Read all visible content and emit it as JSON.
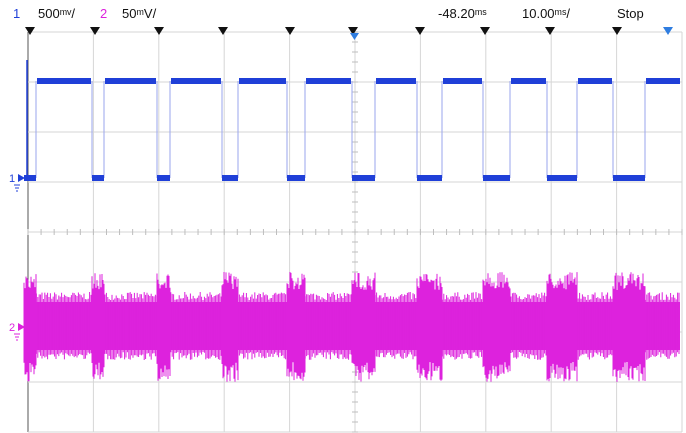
{
  "status": {
    "ch1_number": "1",
    "ch1_scale": "500ᵐᵛ/",
    "ch2_number": "2",
    "ch2_scale": "50ᵐV/",
    "time_delay": "-48.20ᵐˢ",
    "time_scale": "10.00ᵐˢ/",
    "run_state": "Stop"
  },
  "markers": {
    "ch1_label": "1",
    "ch2_label": "2"
  },
  "colors": {
    "ch1": "#1f3fd8",
    "ch2": "#dd22dd",
    "grid": "#d6d6d6",
    "trigger_marker": "#2f7de0",
    "edge_marker": "#111111"
  }
}
